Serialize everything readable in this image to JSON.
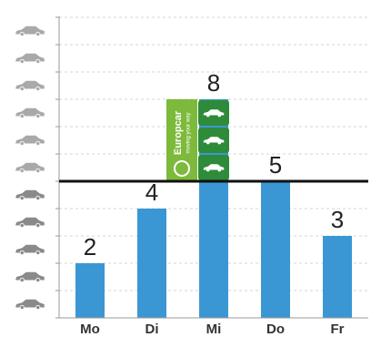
{
  "chart_data": {
    "type": "bar",
    "categories": [
      "Mo",
      "Di",
      "Mi",
      "Do",
      "Fr"
    ],
    "values": [
      2,
      4,
      8,
      5,
      3
    ],
    "color": "#3b97d3",
    "over_color": "#2e8b3a",
    "threshold": 5,
    "ylim": [
      0,
      11
    ],
    "yticks": [
      0,
      1,
      2,
      3,
      4,
      5,
      6,
      7,
      8,
      9,
      10,
      11
    ],
    "grid": true,
    "brand": {
      "name": "Europcar",
      "tagline": "moving your way"
    }
  }
}
